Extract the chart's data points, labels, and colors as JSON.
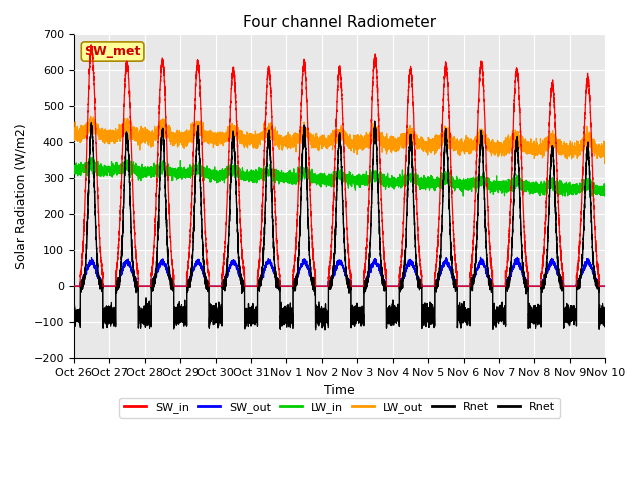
{
  "title": "Four channel Radiometer",
  "xlabel": "Time",
  "ylabel": "Solar Radiation (W/m2)",
  "ylim": [
    -200,
    700
  ],
  "xlim": [
    0,
    15
  ],
  "background_color": "#ffffff",
  "plot_bg_color": "#e8e8e8",
  "annotation_text": "SW_met",
  "annotation_color": "#cc0000",
  "annotation_bg": "#ffff99",
  "x_tick_labels": [
    "Oct 26",
    "Oct 27",
    "Oct 28",
    "Oct 29",
    "Oct 30",
    "Oct 31",
    "Nov 1",
    "Nov 2",
    "Nov 3",
    "Nov 4",
    "Nov 5",
    "Nov 6",
    "Nov 7",
    "Nov 8",
    "Nov 9",
    "Nov 10"
  ],
  "num_days": 15,
  "legend_entries": [
    {
      "label": "SW_in",
      "color": "#ff0000"
    },
    {
      "label": "SW_out",
      "color": "#0000ff"
    },
    {
      "label": "LW_in",
      "color": "#00cc00"
    },
    {
      "label": "LW_out",
      "color": "#ff9900"
    },
    {
      "label": "Rnet",
      "color": "#000000"
    },
    {
      "label": "Rnet",
      "color": "#000000"
    }
  ]
}
